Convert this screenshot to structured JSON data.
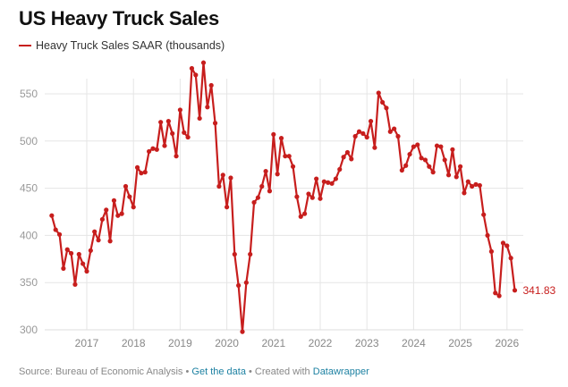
{
  "title": "US Heavy Truck Sales",
  "footer": {
    "source_text": "Source: Bureau of Economic Analysis",
    "separator": " • ",
    "get_data_label": "Get the data",
    "created_with_text": "Created with",
    "datawrapper_label": "Datawrapper"
  },
  "colors": {
    "series": "#c71e1d",
    "grid": "#e5e5e5",
    "link": "#1d81a2"
  },
  "chart_data": {
    "type": "line",
    "title": "US Heavy Truck Sales",
    "legend": [
      {
        "name": "Heavy Truck Sales SAAR (thousands)",
        "color": "#c71e1d"
      }
    ],
    "legend_position": "top-left",
    "xlabel": "",
    "ylabel": "",
    "ylim": [
      300,
      580
    ],
    "xlim": [
      2016.1,
      2026.25
    ],
    "grid": true,
    "yticks": [
      300,
      350,
      400,
      450,
      500,
      550
    ],
    "xticks": [
      "2017",
      "2018",
      "2019",
      "2020",
      "2021",
      "2022",
      "2023",
      "2024",
      "2025",
      "2026"
    ],
    "end_label": "341.83",
    "series": [
      {
        "name": "Heavy Truck Sales SAAR (thousands)",
        "start": "2016-04",
        "frequency": "monthly",
        "values": [
          421,
          406,
          401,
          365,
          385,
          381,
          348,
          380,
          370,
          362,
          384,
          404,
          395,
          417,
          427,
          394,
          437,
          421,
          423,
          452,
          441,
          430,
          472,
          466,
          467,
          489,
          492,
          491,
          520,
          495,
          521,
          508,
          484,
          533,
          509,
          504,
          577,
          570,
          524,
          583,
          536,
          559,
          519,
          452,
          464,
          430,
          461,
          380,
          347,
          298,
          350,
          380,
          435,
          440,
          452,
          468,
          447,
          507,
          465,
          503,
          484,
          484,
          473,
          441,
          420,
          423,
          444,
          440,
          460,
          439,
          457,
          456,
          455,
          460,
          470,
          483,
          488,
          481,
          505,
          510,
          508,
          504,
          521,
          493,
          551,
          541,
          535,
          510,
          513,
          505,
          469,
          474,
          486,
          494,
          496,
          482,
          480,
          473,
          467,
          495,
          494,
          480,
          464,
          491,
          462,
          473,
          445,
          457,
          452,
          454,
          453,
          422,
          400,
          383,
          339,
          336,
          392,
          389,
          376,
          341.83
        ]
      }
    ]
  }
}
